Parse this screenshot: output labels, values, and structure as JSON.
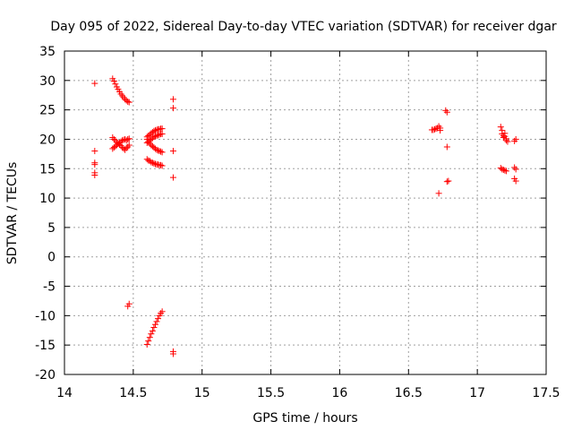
{
  "chart_data": {
    "type": "scatter",
    "title": "Day 095 of 2022, Sidereal Day-to-day VTEC variation (SDTVAR) for receiver dgar",
    "xlabel": "GPS time / hours",
    "ylabel": "SDTVAR / TECUs",
    "xlim": [
      14,
      17.5
    ],
    "ylim": [
      -20,
      35
    ],
    "grid": true,
    "xticks": [
      "14",
      "14.5",
      "15",
      "15.5",
      "16",
      "16.5",
      "17",
      "17.5"
    ],
    "yticks": [
      "-20",
      "-15",
      "-10",
      "-5",
      "0",
      "5",
      "10",
      "15",
      "20",
      "25",
      "30",
      "35"
    ],
    "marker_color": "#ff0000",
    "series": [
      {
        "name": "SDTVAR",
        "points": [
          [
            14.22,
            29.5
          ],
          [
            14.22,
            18.0
          ],
          [
            14.22,
            16.0
          ],
          [
            14.22,
            15.7
          ],
          [
            14.22,
            14.3
          ],
          [
            14.22,
            13.9
          ],
          [
            14.35,
            30.3
          ],
          [
            14.36,
            29.9
          ],
          [
            14.37,
            29.4
          ],
          [
            14.38,
            28.9
          ],
          [
            14.39,
            28.5
          ],
          [
            14.4,
            28.1
          ],
          [
            14.41,
            27.7
          ],
          [
            14.42,
            27.4
          ],
          [
            14.43,
            27.1
          ],
          [
            14.44,
            26.8
          ],
          [
            14.45,
            26.6
          ],
          [
            14.46,
            26.4
          ],
          [
            14.47,
            26.3
          ],
          [
            14.35,
            20.3
          ],
          [
            14.36,
            20.0
          ],
          [
            14.37,
            19.8
          ],
          [
            14.38,
            19.5
          ],
          [
            14.39,
            19.3
          ],
          [
            14.4,
            19.1
          ],
          [
            14.41,
            18.9
          ],
          [
            14.42,
            18.6
          ],
          [
            14.43,
            18.4
          ],
          [
            14.44,
            18.2
          ],
          [
            14.35,
            18.4
          ],
          [
            14.36,
            18.6
          ],
          [
            14.37,
            18.8
          ],
          [
            14.38,
            19.0
          ],
          [
            14.39,
            19.2
          ],
          [
            14.4,
            19.4
          ],
          [
            14.41,
            19.6
          ],
          [
            14.42,
            19.8
          ],
          [
            14.43,
            19.9
          ],
          [
            14.44,
            20.0
          ],
          [
            14.45,
            18.5
          ],
          [
            14.46,
            18.7
          ],
          [
            14.47,
            19.0
          ],
          [
            14.45,
            19.8
          ],
          [
            14.46,
            20.0
          ],
          [
            14.47,
            20.1
          ],
          [
            14.47,
            -8.0
          ],
          [
            14.46,
            -8.4
          ],
          [
            14.6,
            20.4
          ],
          [
            14.61,
            20.6
          ],
          [
            14.62,
            20.8
          ],
          [
            14.63,
            21.0
          ],
          [
            14.64,
            21.2
          ],
          [
            14.65,
            21.4
          ],
          [
            14.66,
            21.5
          ],
          [
            14.67,
            21.6
          ],
          [
            14.68,
            21.7
          ],
          [
            14.69,
            21.7
          ],
          [
            14.7,
            21.8
          ],
          [
            14.71,
            21.8
          ],
          [
            14.6,
            19.4
          ],
          [
            14.61,
            19.6
          ],
          [
            14.62,
            19.8
          ],
          [
            14.63,
            20.0
          ],
          [
            14.64,
            20.2
          ],
          [
            14.65,
            20.4
          ],
          [
            14.66,
            20.5
          ],
          [
            14.67,
            20.6
          ],
          [
            14.68,
            20.7
          ],
          [
            14.69,
            20.8
          ],
          [
            14.7,
            20.9
          ],
          [
            14.71,
            20.9
          ],
          [
            14.6,
            20.0
          ],
          [
            14.61,
            19.6
          ],
          [
            14.62,
            19.3
          ],
          [
            14.63,
            19.0
          ],
          [
            14.64,
            18.8
          ],
          [
            14.65,
            18.6
          ],
          [
            14.66,
            18.4
          ],
          [
            14.67,
            18.2
          ],
          [
            14.68,
            18.1
          ],
          [
            14.69,
            18.0
          ],
          [
            14.7,
            17.9
          ],
          [
            14.71,
            17.8
          ],
          [
            14.6,
            16.6
          ],
          [
            14.61,
            16.4
          ],
          [
            14.62,
            16.3
          ],
          [
            14.63,
            16.1
          ],
          [
            14.64,
            16.0
          ],
          [
            14.65,
            15.9
          ],
          [
            14.66,
            15.8
          ],
          [
            14.67,
            15.7
          ],
          [
            14.68,
            15.7
          ],
          [
            14.69,
            15.6
          ],
          [
            14.7,
            15.6
          ],
          [
            14.71,
            15.5
          ],
          [
            14.6,
            -14.9
          ],
          [
            14.61,
            -14.3
          ],
          [
            14.62,
            -13.7
          ],
          [
            14.63,
            -13.1
          ],
          [
            14.64,
            -12.6
          ],
          [
            14.65,
            -12.0
          ],
          [
            14.66,
            -11.5
          ],
          [
            14.67,
            -11.0
          ],
          [
            14.68,
            -10.5
          ],
          [
            14.69,
            -10.0
          ],
          [
            14.7,
            -9.6
          ],
          [
            14.71,
            -9.3
          ],
          [
            14.79,
            26.8
          ],
          [
            14.79,
            25.3
          ],
          [
            14.79,
            18.0
          ],
          [
            14.79,
            13.5
          ],
          [
            14.79,
            -16.1
          ],
          [
            14.79,
            -16.5
          ],
          [
            16.67,
            21.6
          ],
          [
            16.68,
            21.6
          ],
          [
            16.69,
            21.7
          ],
          [
            16.7,
            21.8
          ],
          [
            16.71,
            21.9
          ],
          [
            16.72,
            22.2
          ],
          [
            16.73,
            21.9
          ],
          [
            16.73,
            21.5
          ],
          [
            16.72,
            10.8
          ],
          [
            16.77,
            24.9
          ],
          [
            16.78,
            24.6
          ],
          [
            16.78,
            18.7
          ],
          [
            16.79,
            12.9
          ],
          [
            16.78,
            12.8
          ],
          [
            17.17,
            22.1
          ],
          [
            17.18,
            21.5
          ],
          [
            17.18,
            20.9
          ],
          [
            17.19,
            20.6
          ],
          [
            17.19,
            20.3
          ],
          [
            17.2,
            21.0
          ],
          [
            17.2,
            20.5
          ],
          [
            17.21,
            20.1
          ],
          [
            17.21,
            19.8
          ],
          [
            17.22,
            19.6
          ],
          [
            17.17,
            15.1
          ],
          [
            17.18,
            14.9
          ],
          [
            17.19,
            14.8
          ],
          [
            17.2,
            14.7
          ],
          [
            17.21,
            14.6
          ],
          [
            17.27,
            19.7
          ],
          [
            17.28,
            20.0
          ],
          [
            17.27,
            15.2
          ],
          [
            17.28,
            14.9
          ],
          [
            17.27,
            13.3
          ],
          [
            17.28,
            12.9
          ]
        ]
      }
    ]
  }
}
